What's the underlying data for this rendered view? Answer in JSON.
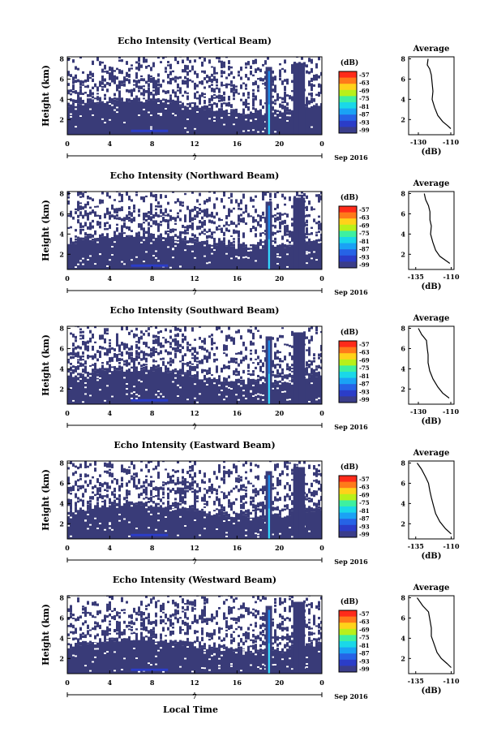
{
  "colorbar": {
    "unit": "(dB)",
    "ticks": [
      "-57",
      "-63",
      "-69",
      "-75",
      "-81",
      "-87",
      "-93",
      "-99"
    ],
    "colors": [
      "#ff2b1a",
      "#ff7a1a",
      "#ffd21a",
      "#b8f01a",
      "#3ef0a0",
      "#1ad8e8",
      "#1aa2f5",
      "#2663e6",
      "#2b3dc8",
      "#3a3d8a"
    ]
  },
  "shared": {
    "date_label": "Sep 2016",
    "day_label": "7",
    "xlabel": "Local Time",
    "mask_color": "#393b78",
    "spike_color": "#1f8be6"
  },
  "chart_data": [
    {
      "type": "heatmap",
      "title": "Echo Intensity (Vertical Beam)",
      "ylabel": "Height (km)",
      "x_ticks": [
        "0",
        "4",
        "8",
        "12",
        "16",
        "20",
        "0"
      ],
      "y_ticks": [
        "2",
        "4",
        "6",
        "8"
      ],
      "xlim": [
        0,
        24
      ],
      "ylim": [
        0.5,
        8.2
      ],
      "profile": {
        "title": "Average",
        "xlabel": "(dB)",
        "x_ticks": [
          "-130",
          "-110"
        ],
        "x_tick_values": [
          -130,
          -110
        ],
        "y_ticks": [
          "2",
          "4",
          "6",
          "8"
        ],
        "xlim": [
          -136,
          -108
        ],
        "ylim": [
          0.5,
          8.2
        ],
        "points": [
          [
            -124,
            8.0
          ],
          [
            -124.5,
            7.4
          ],
          [
            -123,
            7.0
          ],
          [
            -122,
            6.4
          ],
          [
            -121.5,
            5.6
          ],
          [
            -121,
            4.8
          ],
          [
            -121.5,
            4.0
          ],
          [
            -120,
            3.2
          ],
          [
            -118,
            2.4
          ],
          [
            -115,
            1.8
          ],
          [
            -112,
            1.4
          ],
          [
            -110,
            1.1
          ]
        ]
      }
    },
    {
      "type": "heatmap",
      "title": "Echo Intensity (Northward Beam)",
      "ylabel": "Height (km)",
      "x_ticks": [
        "0",
        "4",
        "8",
        "12",
        "16",
        "20",
        "0"
      ],
      "y_ticks": [
        "2",
        "4",
        "6",
        "8"
      ],
      "xlim": [
        0,
        24
      ],
      "ylim": [
        0.5,
        8.2
      ],
      "profile": {
        "title": "Average",
        "xlabel": "(dB)",
        "x_ticks": [
          "-135",
          "-110"
        ],
        "x_tick_values": [
          -135,
          -110
        ],
        "y_ticks": [
          "2",
          "4",
          "6",
          "8"
        ],
        "xlim": [
          -140,
          -108
        ],
        "ylim": [
          0.5,
          8.2
        ],
        "points": [
          [
            -129,
            8.0
          ],
          [
            -128,
            7.4
          ],
          [
            -126,
            6.8
          ],
          [
            -125,
            6.2
          ],
          [
            -125,
            5.4
          ],
          [
            -124,
            4.8
          ],
          [
            -124.5,
            4.0
          ],
          [
            -123,
            3.2
          ],
          [
            -121,
            2.4
          ],
          [
            -118,
            1.8
          ],
          [
            -114,
            1.4
          ],
          [
            -111,
            1.1
          ]
        ]
      }
    },
    {
      "type": "heatmap",
      "title": "Echo Intensity (Southward Beam)",
      "ylabel": "Height (km)",
      "x_ticks": [
        "0",
        "4",
        "8",
        "12",
        "16",
        "20",
        "0"
      ],
      "y_ticks": [
        "2",
        "4",
        "6",
        "8"
      ],
      "xlim": [
        0,
        24
      ],
      "ylim": [
        0.5,
        8.2
      ],
      "profile": {
        "title": "Average",
        "xlabel": "(dB)",
        "x_ticks": [
          "-130",
          "-110"
        ],
        "x_tick_values": [
          -130,
          -110
        ],
        "y_ticks": [
          "2",
          "4",
          "6",
          "8"
        ],
        "xlim": [
          -136,
          -108
        ],
        "ylim": [
          0.5,
          8.2
        ],
        "points": [
          [
            -130,
            8.0
          ],
          [
            -128,
            7.4
          ],
          [
            -125,
            6.8
          ],
          [
            -124.5,
            6.0
          ],
          [
            -124,
            5.4
          ],
          [
            -124,
            4.6
          ],
          [
            -123,
            3.8
          ],
          [
            -121,
            3.0
          ],
          [
            -118,
            2.2
          ],
          [
            -115,
            1.6
          ],
          [
            -111,
            1.1
          ]
        ]
      }
    },
    {
      "type": "heatmap",
      "title": "Echo Intensity (Eastward Beam)",
      "ylabel": "Height (km)",
      "x_ticks": [
        "0",
        "4",
        "8",
        "12",
        "16",
        "20",
        "0"
      ],
      "y_ticks": [
        "2",
        "4",
        "6",
        "8"
      ],
      "xlim": [
        0,
        24
      ],
      "ylim": [
        0.5,
        8.2
      ],
      "profile": {
        "title": "Average",
        "xlabel": "(dB)",
        "x_ticks": [
          "-135",
          "-110"
        ],
        "x_tick_values": [
          -135,
          -110
        ],
        "y_ticks": [
          "2",
          "4",
          "6",
          "8"
        ],
        "xlim": [
          -140,
          -108
        ],
        "ylim": [
          0.5,
          8.2
        ],
        "points": [
          [
            -134,
            8.0
          ],
          [
            -131,
            7.4
          ],
          [
            -128,
            6.6
          ],
          [
            -126,
            6.0
          ],
          [
            -125,
            5.2
          ],
          [
            -124,
            4.6
          ],
          [
            -122.5,
            3.8
          ],
          [
            -121,
            3.0
          ],
          [
            -118,
            2.2
          ],
          [
            -114,
            1.5
          ],
          [
            -110,
            1.0
          ]
        ]
      }
    },
    {
      "type": "heatmap",
      "title": "Echo Intensity (Westward Beam)",
      "ylabel": "Height (km)",
      "x_ticks": [
        "0",
        "4",
        "8",
        "12",
        "16",
        "20",
        "0"
      ],
      "y_ticks": [
        "2",
        "4",
        "6",
        "8"
      ],
      "xlim": [
        0,
        24
      ],
      "ylim": [
        0.5,
        8.2
      ],
      "profile": {
        "title": "Average",
        "xlabel": "(dB)",
        "x_ticks": [
          "-135",
          "-110"
        ],
        "x_tick_values": [
          -135,
          -110
        ],
        "y_ticks": [
          "2",
          "4",
          "6",
          "8"
        ],
        "xlim": [
          -140,
          -108
        ],
        "ylim": [
          0.5,
          8.2
        ],
        "points": [
          [
            -134,
            8.0
          ],
          [
            -130,
            7.2
          ],
          [
            -126,
            6.6
          ],
          [
            -125,
            5.8
          ],
          [
            -124,
            5.0
          ],
          [
            -124,
            4.2
          ],
          [
            -122,
            3.4
          ],
          [
            -120,
            2.6
          ],
          [
            -117,
            2.0
          ],
          [
            -113,
            1.5
          ],
          [
            -110,
            1.1
          ]
        ]
      }
    }
  ]
}
